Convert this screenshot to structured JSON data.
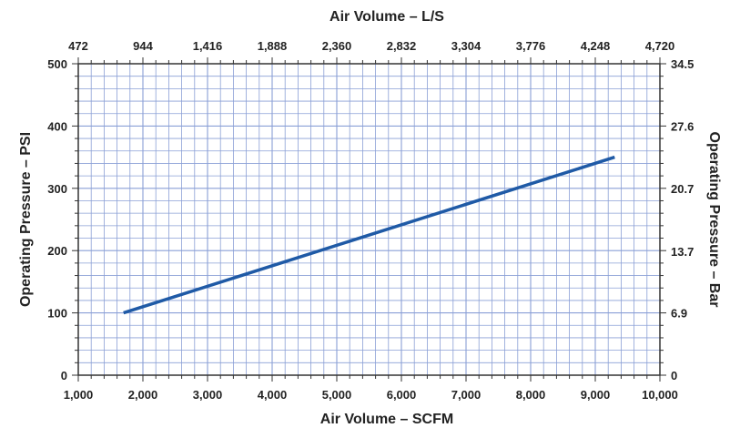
{
  "chart_data": {
    "type": "line",
    "x_bottom": {
      "label": "Air Volume – SCFM",
      "range": [
        1000,
        10000
      ],
      "ticks": [
        1000,
        2000,
        3000,
        4000,
        5000,
        6000,
        7000,
        8000,
        9000,
        10000
      ],
      "tick_labels": [
        "1,000",
        "2,000",
        "3,000",
        "4,000",
        "5,000",
        "6,000",
        "7,000",
        "8,000",
        "9,000",
        "10,000"
      ]
    },
    "x_top": {
      "label": "Air Volume – L/S",
      "range": [
        472,
        4720
      ],
      "ticks": [
        472,
        944,
        1416,
        1888,
        2360,
        2832,
        3304,
        3776,
        4248,
        4720
      ],
      "tick_labels": [
        "472",
        "944",
        "1,416",
        "1,888",
        "2,360",
        "2,832",
        "3,304",
        "3,776",
        "4,248",
        "4,720"
      ]
    },
    "y_left": {
      "label": "Operating Pressure – PSI",
      "range": [
        0,
        500
      ],
      "ticks": [
        0,
        100,
        200,
        300,
        400,
        500
      ],
      "tick_labels": [
        "0",
        "100",
        "200",
        "300",
        "400",
        "500"
      ]
    },
    "y_right": {
      "label": "Operating Pressure – Bar",
      "range": [
        0,
        34.5
      ],
      "ticks": [
        0,
        6.9,
        13.7,
        20.7,
        27.6,
        34.5
      ],
      "tick_labels": [
        "0",
        "6.9",
        "13.7",
        "20.7",
        "27.6",
        "34.5"
      ]
    },
    "series": [
      {
        "x": [
          1700,
          9300
        ],
        "y": [
          100,
          350
        ]
      }
    ],
    "grid": true,
    "colors": {
      "grid": "#8a9fd6",
      "line": "#1f5aa6",
      "frame": "#333333"
    }
  }
}
